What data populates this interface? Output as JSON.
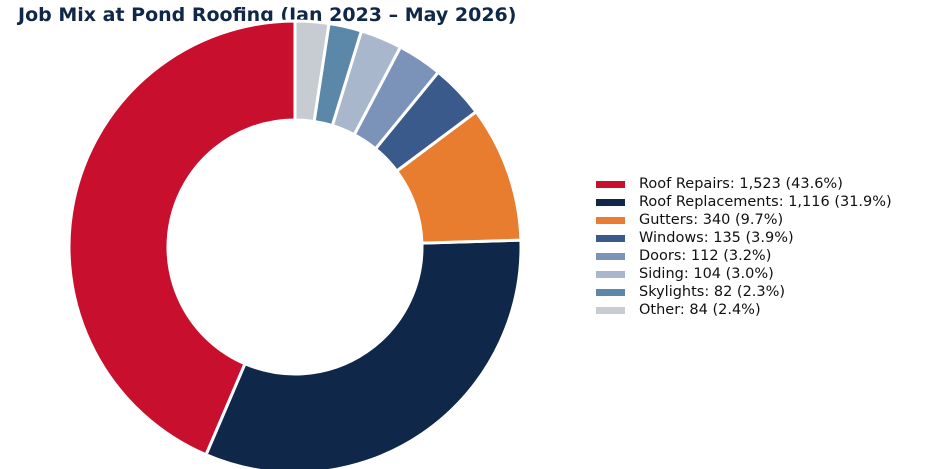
{
  "chart_data": {
    "type": "pie",
    "title": "Job Mix at Pond Roofing (Jan 2023 – May 2026)",
    "donut": true,
    "legend_position": "right",
    "slices": [
      {
        "label": "Roof Repairs",
        "value": 1523,
        "legend_text": "Roof Repairs: 1,523 (43.6%)",
        "color": "#c8102e"
      },
      {
        "label": "Roof Replacements",
        "value": 1116,
        "legend_text": "Roof Replacements: 1,116 (31.9%)",
        "color": "#0f2748"
      },
      {
        "label": "Gutters",
        "value": 340,
        "legend_text": "Gutters: 340 (9.7%)",
        "color": "#e87c2f"
      },
      {
        "label": "Windows",
        "value": 135,
        "legend_text": "Windows: 135 (3.9%)",
        "color": "#3b5a8c"
      },
      {
        "label": "Doors",
        "value": 112,
        "legend_text": "Doors: 112 (3.2%)",
        "color": "#7b93b8"
      },
      {
        "label": "Siding",
        "value": 104,
        "legend_text": "Siding: 104 (3.0%)",
        "color": "#a9b7cc"
      },
      {
        "label": "Skylights",
        "value": 82,
        "legend_text": "Skylights: 82 (2.3%)",
        "color": "#5b87a8"
      },
      {
        "label": "Other",
        "value": 84,
        "legend_text": "Other: 84 (2.4%)",
        "color": "#c7ccd3"
      }
    ]
  }
}
